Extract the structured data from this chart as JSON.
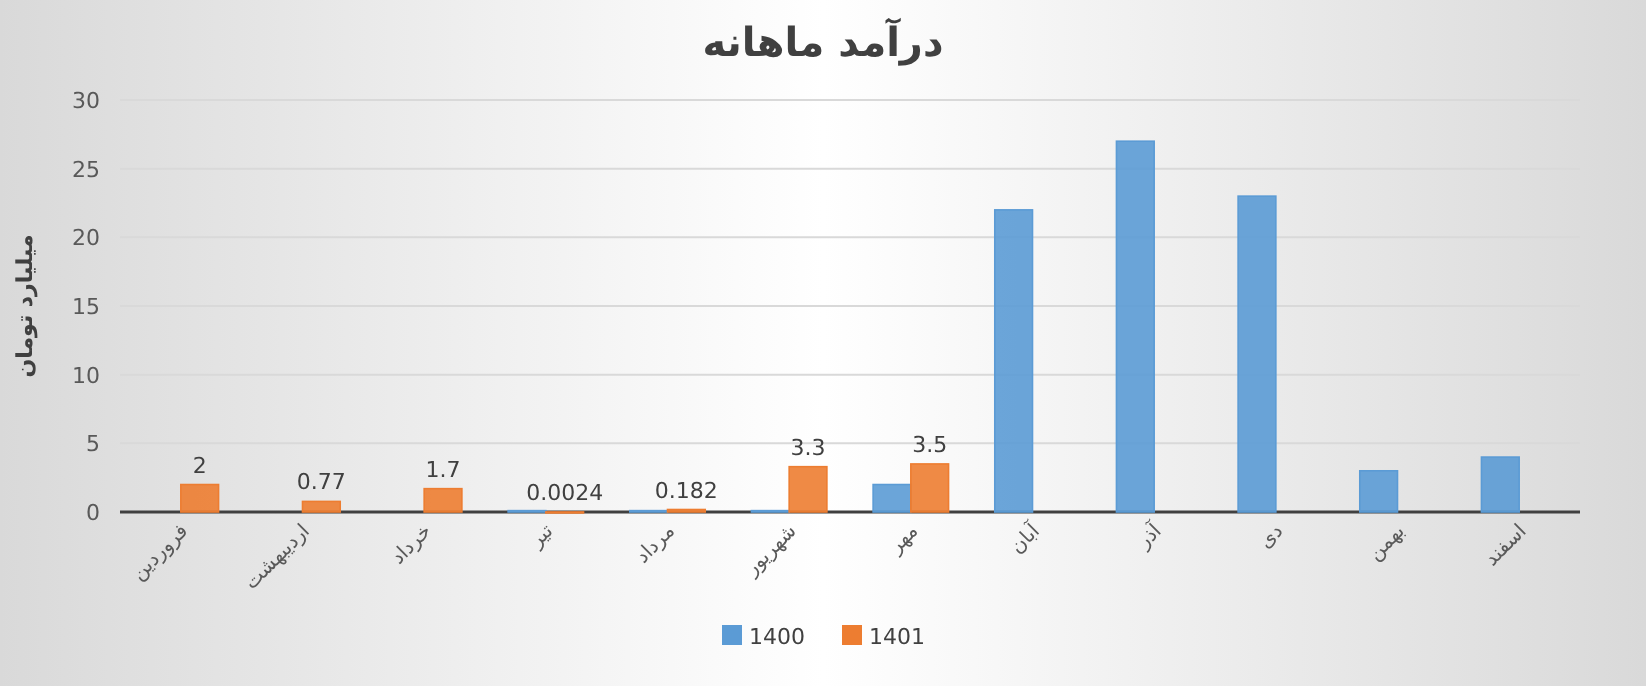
{
  "chart_data": {
    "type": "bar",
    "title": "درآمد ماهانه",
    "ylabel": "میلیارد تومان",
    "categories": [
      "فروردین",
      "اردیبهشت",
      "خرداد",
      "تیر",
      "مرداد",
      "شهریور",
      "مهر",
      "آبان",
      "آذر",
      "دی",
      "بهمن",
      "اسفند"
    ],
    "series": [
      {
        "name": "1400",
        "color": "#5b9bd5",
        "values": [
          null,
          null,
          null,
          0.1,
          0.1,
          0.1,
          2,
          22,
          27,
          23,
          3,
          4
        ]
      },
      {
        "name": "1401",
        "color": "#ed7d31",
        "values": [
          2,
          0.77,
          1.7,
          0.0024,
          0.182,
          3.3,
          3.5,
          null,
          null,
          null,
          null,
          null
        ],
        "value_labels": [
          "2",
          "0.77",
          "1.7",
          "0.0024",
          "0.182",
          "3.3",
          "3.5",
          null,
          null,
          null,
          null,
          null
        ]
      }
    ],
    "ylim": [
      0,
      30
    ],
    "yticks": [
      0,
      5,
      10,
      15,
      20,
      25,
      30
    ],
    "grid": "y",
    "legend": "bottom"
  }
}
